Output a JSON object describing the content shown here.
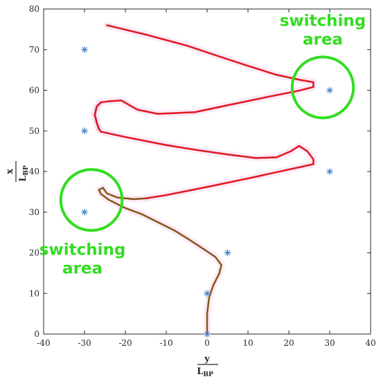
{
  "chart_data": {
    "type": "line",
    "title": "",
    "xlabel": {
      "numerator": "y",
      "denominator": "L",
      "subscript": "BP"
    },
    "ylabel": {
      "numerator": "x",
      "denominator": "L",
      "subscript": "BP"
    },
    "xlim": [
      -40,
      40
    ],
    "ylim": [
      0,
      80
    ],
    "xticks": [
      -40,
      -30,
      -20,
      -10,
      0,
      10,
      20,
      30,
      40
    ],
    "yticks": [
      0,
      10,
      20,
      30,
      40,
      50,
      60,
      70,
      80
    ],
    "grid": false,
    "series": [
      {
        "style": "line",
        "color": "#8b5a1a",
        "points": [
          [
            0,
            0
          ],
          [
            0,
            5
          ],
          [
            0.5,
            9
          ],
          [
            1.5,
            12
          ],
          [
            3,
            15
          ],
          [
            3.5,
            17
          ],
          [
            2,
            19
          ],
          [
            -1,
            21
          ],
          [
            -4,
            23
          ],
          [
            -8,
            25.5
          ],
          [
            -12,
            27.5
          ],
          [
            -16,
            29.5
          ],
          [
            -20,
            31
          ],
          [
            -24,
            33
          ],
          [
            -26,
            34.5
          ],
          [
            -26.5,
            35.5
          ],
          [
            -25.5,
            36
          ],
          [
            -25,
            35.3
          ],
          [
            -24.5,
            34.6
          ],
          [
            -22,
            33.6
          ],
          [
            -18,
            33.2
          ],
          [
            -15,
            33.4
          ]
        ]
      },
      {
        "style": "line",
        "color": "#6a1b9a",
        "points": [
          [
            -26.5,
            50.5
          ],
          [
            -27,
            52
          ],
          [
            -27.5,
            54
          ],
          [
            -27,
            56
          ],
          [
            -26,
            57
          ]
        ]
      },
      {
        "style": "line",
        "color": "#e01b24",
        "points": [
          [
            -15,
            33.4
          ],
          [
            -10,
            34.2
          ],
          [
            0,
            36.2
          ],
          [
            10,
            38.3
          ],
          [
            20,
            40.5
          ],
          [
            26,
            41.8
          ],
          [
            26,
            43
          ],
          [
            24.5,
            45
          ],
          [
            22.5,
            46.3
          ],
          [
            20.5,
            45
          ],
          [
            17,
            43.5
          ],
          [
            12,
            43.3
          ],
          [
            5,
            44.2
          ],
          [
            -2,
            45.2
          ],
          [
            -10,
            46.5
          ],
          [
            -20,
            48.5
          ],
          [
            -26,
            49.8
          ],
          [
            -26.5,
            50.5
          ],
          [
            -27,
            52
          ],
          [
            -27.5,
            54
          ],
          [
            -27,
            56
          ],
          [
            -26,
            57
          ],
          [
            -24,
            57.3
          ],
          [
            -21,
            57.5
          ],
          [
            -17,
            55.2
          ],
          [
            -12,
            54.2
          ],
          [
            -3,
            54.6
          ],
          [
            5,
            56.3
          ],
          [
            15,
            58.4
          ],
          [
            22,
            59.8
          ],
          [
            26,
            60.8
          ],
          [
            26,
            62
          ],
          [
            23,
            62.5
          ],
          [
            17,
            63.8
          ],
          [
            10,
            66
          ],
          [
            3,
            68.3
          ],
          [
            -5,
            71
          ],
          [
            -15,
            73.7
          ],
          [
            -24.5,
            76
          ]
        ]
      },
      {
        "style": "markers",
        "marker": "asterisk",
        "color": "#3478c6",
        "points": [
          [
            0,
            0
          ],
          [
            0,
            10
          ],
          [
            5,
            20
          ],
          [
            -30,
            30
          ],
          [
            30,
            40
          ],
          [
            -30,
            50
          ],
          [
            30,
            60
          ],
          [
            -30,
            70
          ]
        ]
      }
    ],
    "annotations": [
      {
        "type": "circle",
        "cx": 28.3,
        "cy": 60.7,
        "r": 7.5,
        "color": "#33dd22"
      },
      {
        "type": "circle",
        "cx": -28.3,
        "cy": 33,
        "r": 7.5,
        "color": "#33dd22"
      }
    ],
    "labels": [
      {
        "lines": [
          "switching",
          "area"
        ],
        "x": 28.3,
        "y": 75.8,
        "color": "#33dd22"
      },
      {
        "lines": [
          "switching",
          "area"
        ],
        "x": -30.5,
        "y": 19.5,
        "color": "#33dd22"
      }
    ]
  }
}
